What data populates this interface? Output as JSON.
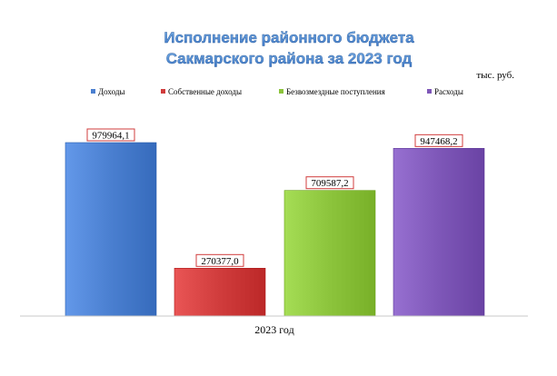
{
  "chart_data": {
    "type": "bar",
    "title_lines": [
      "Исполнение районного бюджета",
      "Сакмарского района за 2023 год"
    ],
    "unit": "тыс. руб.",
    "category": "2023 год",
    "legend_position": "top",
    "grid": false,
    "ylim": [
      0,
      1100000
    ],
    "series": [
      {
        "name": "Доходы",
        "value": 979964.1,
        "label": "979964,1",
        "color": "#4a7fd0"
      },
      {
        "name": "Собственные доходы",
        "value": 270377.0,
        "label": "270377,0",
        "color": "#d03c3c"
      },
      {
        "name": "Безвозмездные поступления",
        "value": 709587.2,
        "label": "709587,2",
        "color": "#8cc43c"
      },
      {
        "name": "Расходы",
        "value": 947468.2,
        "label": "947468,2",
        "color": "#7e57b8"
      }
    ]
  }
}
